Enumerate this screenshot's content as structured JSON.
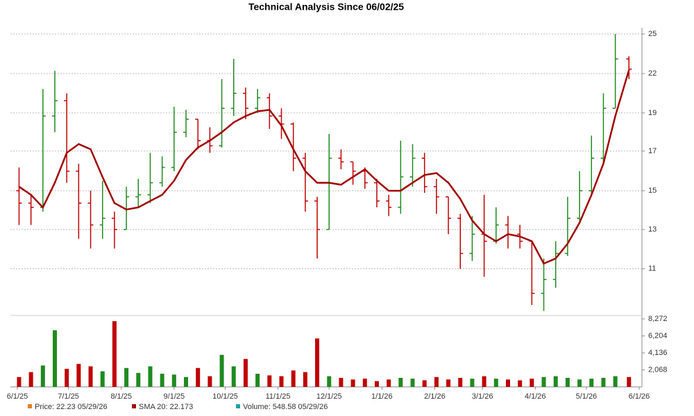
{
  "chart_data": {
    "type": "ohlc",
    "title": "Technical Analysis Since 06/02/25",
    "x": [
      "6/2/25",
      "6/9/25",
      "6/16/25",
      "6/23/25",
      "6/30/25",
      "7/7/25",
      "7/14/25",
      "7/21/25",
      "7/28/25",
      "8/4/25",
      "8/11/25",
      "8/18/25",
      "8/25/25",
      "9/1/25",
      "9/8/25",
      "9/15/25",
      "9/22/25",
      "9/29/25",
      "10/6/25",
      "10/13/25",
      "10/20/25",
      "10/27/25",
      "11/3/25",
      "11/10/25",
      "11/17/25",
      "11/24/25",
      "12/1/25",
      "12/8/25",
      "12/15/25",
      "12/22/25",
      "12/29/25",
      "1/5/26",
      "1/12/26",
      "1/19/26",
      "1/26/26",
      "2/2/26",
      "2/9/26",
      "2/16/26",
      "2/23/26",
      "3/2/26",
      "3/9/26",
      "3/16/26",
      "3/23/26",
      "3/30/26",
      "4/6/26",
      "4/13/26",
      "4/20/26",
      "4/27/26",
      "5/4/26",
      "5/11/26",
      "5/18/26",
      "5/26/26"
    ],
    "open": [
      14.8,
      14.2,
      14.0,
      19.0,
      20.0,
      15.8,
      14.2,
      13.2,
      13.5,
      13.0,
      14.5,
      14.6,
      15.2,
      16.0,
      18.0,
      18.8,
      17.5,
      17.2,
      19.5,
      20.5,
      19.5,
      20.2,
      19.0,
      18.5,
      16.5,
      14.3,
      13.0,
      16.5,
      16.3,
      15.8,
      15.2,
      14.3,
      14.0,
      15.5,
      16.5,
      15.0,
      14.5,
      13.5,
      12.0,
      12.8,
      12.5,
      13.2,
      12.8,
      12.5,
      10.5,
      11.0,
      12.0,
      13.5,
      14.8,
      16.5,
      19.5,
      23.0
    ],
    "high": [
      16.0,
      14.6,
      20.8,
      22.1,
      20.5,
      16.2,
      14.8,
      15.3,
      13.8,
      15.0,
      15.4,
      16.8,
      16.6,
      19.6,
      19.4,
      18.8,
      18.3,
      21.5,
      23.0,
      20.9,
      20.8,
      20.5,
      19.5,
      18.6,
      16.8,
      14.5,
      17.9,
      17.0,
      16.3,
      16.0,
      15.4,
      14.6,
      17.5,
      17.3,
      16.8,
      15.4,
      14.5,
      13.7,
      13.6,
      14.6,
      14.0,
      13.6,
      13.2,
      12.5,
      11.8,
      12.5,
      14.5,
      15.8,
      17.8,
      20.5,
      25.0,
      23.2
    ],
    "low": [
      13.2,
      13.2,
      13.8,
      18.0,
      15.2,
      12.6,
      12.2,
      12.6,
      12.2,
      13.0,
      14.0,
      14.2,
      15.0,
      15.8,
      17.7,
      17.0,
      16.8,
      17.1,
      19.0,
      18.8,
      19.2,
      18.2,
      17.6,
      15.8,
      13.8,
      11.8,
      13.0,
      15.9,
      15.1,
      14.9,
      14.0,
      13.6,
      13.7,
      15.0,
      14.7,
      13.7,
      12.8,
      11.4,
      11.7,
      11.1,
      12.4,
      12.2,
      12.2,
      10.1,
      9.9,
      10.7,
      11.9,
      13.4,
      14.6,
      16.2,
      19.5,
      21.5
    ],
    "close": [
      14.2,
      14.0,
      19.0,
      20.0,
      15.8,
      14.2,
      13.2,
      13.5,
      13.0,
      14.5,
      14.6,
      15.2,
      16.0,
      18.0,
      18.8,
      17.5,
      17.2,
      19.5,
      20.5,
      19.5,
      20.2,
      19.0,
      18.5,
      16.5,
      14.3,
      13.0,
      16.5,
      16.3,
      15.8,
      15.2,
      14.3,
      14.0,
      15.5,
      16.5,
      15.0,
      14.5,
      13.5,
      12.0,
      12.8,
      12.5,
      13.2,
      12.8,
      12.5,
      10.5,
      11.0,
      12.0,
      13.5,
      14.8,
      16.5,
      19.5,
      23.0,
      22.23
    ],
    "sma": [
      15.0,
      14.6,
      14.0,
      15.2,
      16.8,
      17.3,
      17.0,
      15.5,
      14.2,
      13.9,
      14.0,
      14.3,
      14.6,
      15.3,
      16.4,
      17.1,
      17.5,
      18.0,
      18.6,
      19.0,
      19.3,
      19.4,
      18.4,
      17.0,
      15.8,
      15.2,
      15.2,
      15.1,
      15.5,
      15.9,
      15.3,
      14.8,
      14.8,
      15.2,
      15.6,
      15.7,
      15.2,
      14.4,
      13.4,
      12.8,
      12.5,
      12.8,
      12.7,
      12.5,
      11.6,
      11.8,
      12.4,
      13.3,
      14.6,
      16.2,
      19.0,
      22.173
    ],
    "volume": [
      1200,
      1800,
      2600,
      6900,
      2200,
      2800,
      2500,
      1900,
      8000,
      2300,
      1700,
      2500,
      1600,
      1500,
      1200,
      2300,
      1300,
      3900,
      2500,
      3400,
      1600,
      1400,
      1300,
      2000,
      1800,
      5900,
      1300,
      1100,
      900,
      1000,
      700,
      900,
      1100,
      1000,
      800,
      1200,
      900,
      1100,
      1000,
      1300,
      1000,
      900,
      800,
      1000,
      1200,
      1300,
      1100,
      900,
      1000,
      1100,
      1300,
      1200
    ],
    "up_color": "#1f8a1f",
    "down_color": "#c00000",
    "sma_color": "#a00000",
    "log_scale": true,
    "grid": true,
    "xlim": [
      "6/1/25",
      "6/1/26"
    ],
    "xticks": [
      "6/1/25",
      "7/1/25",
      "8/1/25",
      "9/1/25",
      "10/1/25",
      "11/1/25",
      "12/1/25",
      "1/1/26",
      "2/1/26",
      "3/1/26",
      "4/1/26",
      "5/1/26",
      "6/1/26"
    ],
    "ylim": [
      9.82,
      25.41
    ],
    "yticks": [
      25,
      {
        "value": 21.9,
        "label": "22"
      },
      {
        "value": 19.2,
        "label": "19"
      },
      {
        "value": 16.9,
        "label": "17"
      },
      {
        "value": 14.8,
        "label": "15"
      },
      13,
      {
        "value": 11.4,
        "label": "11"
      }
    ],
    "volume_ylim": [
      0,
      8272
    ],
    "volume_yticks": [
      {
        "value": 2068,
        "label": "2,068"
      },
      {
        "value": 4136,
        "label": "4,136"
      },
      {
        "value": 6204,
        "label": "6,204"
      },
      {
        "value": 8272,
        "label": "8,272"
      }
    ],
    "legend": [
      {
        "text": "Price: 22.23  05/29/26",
        "color": "#e08020"
      },
      {
        "text": "SMA 20: 22.173",
        "color": "#a00000"
      },
      {
        "text": "Volume: 548.58  05/29/26",
        "color": "#20a0a0"
      }
    ]
  }
}
